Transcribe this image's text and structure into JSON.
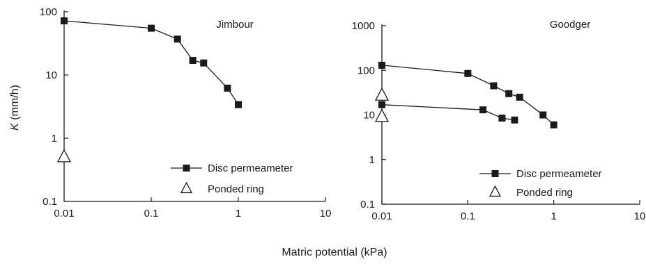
{
  "figure": {
    "xlabel": "Matric potential (kPa)"
  },
  "chart_data": [
    {
      "type": "scatter",
      "title": "Jimbour",
      "xlabel": "Matric potential (kPa)",
      "ylabel_italic": "K",
      "ylabel_unit": " (mm/h)",
      "xscale": "log",
      "yscale": "log",
      "xlim": [
        0.01,
        10
      ],
      "ylim": [
        0.1,
        100
      ],
      "xticks": [
        0.01,
        0.1,
        1,
        10
      ],
      "xtick_labels": [
        "0.01",
        "0.1",
        "1",
        "10"
      ],
      "yticks": [
        0.1,
        1,
        10,
        100
      ],
      "ytick_labels": [
        "0.1",
        "1",
        "10",
        "100"
      ],
      "legend_position": "bottom-right",
      "series": [
        {
          "name": "Disc permeameter",
          "marker": "square",
          "line": true,
          "points": [
            {
              "x": 0.01,
              "y": 72
            },
            {
              "x": 0.1,
              "y": 55
            },
            {
              "x": 0.2,
              "y": 37
            },
            {
              "x": 0.3,
              "y": 17
            },
            {
              "x": 0.4,
              "y": 15.5
            },
            {
              "x": 0.75,
              "y": 6.2
            },
            {
              "x": 1.0,
              "y": 3.4
            }
          ]
        },
        {
          "name": "Ponded ring",
          "marker": "triangle-open",
          "line": false,
          "points": [
            {
              "x": 0.01,
              "y": 0.5
            }
          ]
        }
      ]
    },
    {
      "type": "scatter",
      "title": "Goodger",
      "xlabel": "Matric potential (kPa)",
      "xscale": "log",
      "yscale": "log",
      "xlim": [
        0.01,
        10
      ],
      "ylim": [
        0.1,
        1000
      ],
      "xticks": [
        0.01,
        0.1,
        1,
        10
      ],
      "xtick_labels": [
        "0.01",
        "0.1",
        "1",
        "10"
      ],
      "yticks": [
        0.1,
        1,
        10,
        100,
        1000
      ],
      "ytick_labels": [
        "0.1",
        "1",
        "10",
        "100",
        "1000"
      ],
      "legend_position": "bottom-right",
      "series": [
        {
          "name": "Disc permeameter",
          "marker": "square",
          "line": true,
          "points": [
            {
              "x": 0.01,
              "y": 130
            },
            {
              "x": 0.1,
              "y": 85
            },
            {
              "x": 0.2,
              "y": 45
            },
            {
              "x": 0.3,
              "y": 30
            },
            {
              "x": 0.4,
              "y": 25
            },
            {
              "x": 0.75,
              "y": 10
            },
            {
              "x": 1.0,
              "y": 6
            }
          ]
        },
        {
          "name": "",
          "marker": "square",
          "line": true,
          "points": [
            {
              "x": 0.01,
              "y": 17
            },
            {
              "x": 0.15,
              "y": 13
            },
            {
              "x": 0.25,
              "y": 8.5
            },
            {
              "x": 0.35,
              "y": 7.7
            }
          ]
        },
        {
          "name": "Ponded ring",
          "marker": "triangle-open",
          "line": false,
          "points": [
            {
              "x": 0.01,
              "y": 27
            },
            {
              "x": 0.01,
              "y": 9
            }
          ]
        }
      ]
    }
  ]
}
